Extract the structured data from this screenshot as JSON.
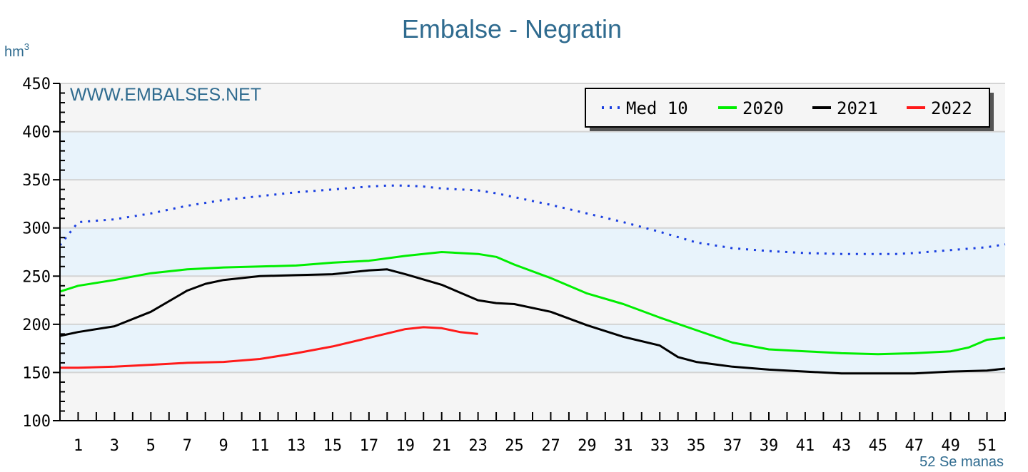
{
  "chart_data": {
    "type": "line",
    "title": "Embalse - Negratin",
    "ylabel": "hm",
    "ylabel_sup": "3",
    "xlabel": "52 Se manas",
    "watermark": "WWW.EMBALSES.NET",
    "ylim": [
      100,
      450
    ],
    "xlim": [
      0,
      52
    ],
    "yticks": [
      100,
      150,
      200,
      250,
      300,
      350,
      400,
      450
    ],
    "xtick_labels": [
      "1",
      "3",
      "5",
      "7",
      "9",
      "11",
      "13",
      "15",
      "17",
      "19",
      "21",
      "23",
      "25",
      "27",
      "29",
      "31",
      "33",
      "35",
      "37",
      "39",
      "41",
      "43",
      "45",
      "47",
      "49",
      "51"
    ],
    "legend_position": "top-right",
    "colors": {
      "band": "#e8f3fb",
      "plot_bg": "#f5f5f5",
      "grid": "#d4d4d4",
      "axis": "#000000"
    },
    "series": [
      {
        "name": "Med 10",
        "style": "dotted",
        "color": "#1a3fe0",
        "x": [
          0,
          1,
          3,
          5,
          7,
          9,
          11,
          13,
          15,
          17,
          18,
          19,
          20,
          21,
          22,
          23,
          24,
          25,
          27,
          29,
          31,
          33,
          35,
          37,
          39,
          41,
          43,
          45,
          46,
          47,
          49,
          51,
          52
        ],
        "values": [
          282,
          306,
          309,
          315,
          323,
          329,
          333,
          337,
          340,
          343,
          344,
          344,
          343,
          341,
          340,
          339,
          336,
          332,
          324,
          315,
          306,
          296,
          285,
          279,
          276,
          274,
          273,
          273,
          273,
          274,
          277,
          280,
          283
        ]
      },
      {
        "name": "2020",
        "style": "solid",
        "color": "#00ee00",
        "x": [
          0,
          1,
          3,
          5,
          7,
          9,
          11,
          13,
          15,
          17,
          19,
          21,
          23,
          24,
          25,
          27,
          29,
          31,
          33,
          35,
          37,
          39,
          41,
          43,
          45,
          47,
          49,
          50,
          51,
          52
        ],
        "values": [
          234,
          240,
          246,
          253,
          257,
          259,
          260,
          261,
          264,
          266,
          271,
          275,
          273,
          270,
          262,
          248,
          232,
          221,
          207,
          194,
          181,
          174,
          172,
          170,
          169,
          170,
          172,
          176,
          184,
          186
        ]
      },
      {
        "name": "2021",
        "style": "solid",
        "color": "#000000",
        "x": [
          0,
          1,
          3,
          5,
          7,
          8,
          9,
          11,
          13,
          15,
          17,
          18,
          19,
          21,
          23,
          24,
          25,
          27,
          29,
          31,
          33,
          34,
          35,
          37,
          39,
          41,
          43,
          45,
          47,
          49,
          51,
          52
        ],
        "values": [
          188,
          192,
          198,
          213,
          235,
          242,
          246,
          250,
          251,
          252,
          256,
          257,
          252,
          241,
          225,
          222,
          221,
          213,
          199,
          187,
          178,
          166,
          161,
          156,
          153,
          151,
          149,
          149,
          149,
          151,
          152,
          154
        ]
      },
      {
        "name": "2022",
        "style": "solid",
        "color": "#ff1a1a",
        "x": [
          0,
          1,
          3,
          5,
          7,
          9,
          11,
          13,
          15,
          17,
          19,
          20,
          21,
          22,
          23
        ],
        "values": [
          155,
          155,
          156,
          158,
          160,
          161,
          164,
          170,
          177,
          186,
          195,
          197,
          196,
          192,
          190
        ]
      }
    ]
  }
}
